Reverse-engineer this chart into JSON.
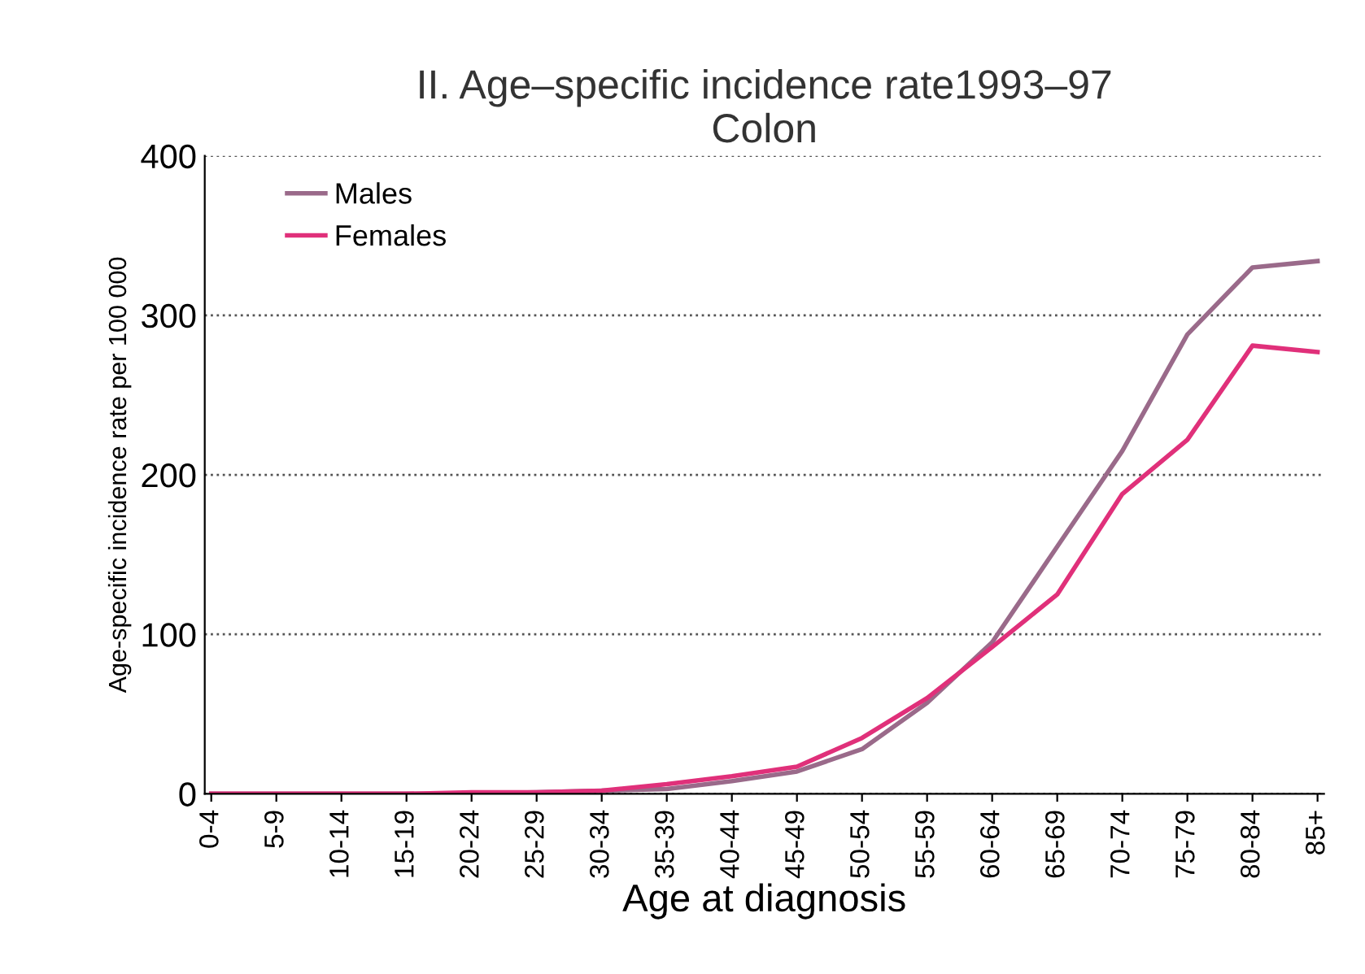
{
  "chart_data": {
    "type": "line",
    "title": "II. Age–specific incidence rate1993–97\nColon",
    "xlabel": "Age at diagnosis",
    "ylabel": "Age-specific incidence rate per 100 000",
    "categories": [
      "0-4",
      "5-9",
      "10-14",
      "15-19",
      "20-24",
      "25-29",
      "30-34",
      "35-39",
      "40-44",
      "45-49",
      "50-54",
      "55-59",
      "60-64",
      "65-69",
      "70-74",
      "75-79",
      "80-84",
      "85+"
    ],
    "series": [
      {
        "name": "Males",
        "color": "#9a6a8a",
        "values": [
          0,
          0,
          0,
          0,
          0,
          1,
          2,
          3,
          8,
          14,
          28,
          57,
          95,
          155,
          215,
          288,
          330,
          334
        ]
      },
      {
        "name": "Females",
        "color": "#e0307a",
        "values": [
          0,
          0,
          0,
          0,
          1,
          1,
          2,
          6,
          11,
          17,
          35,
          60,
          92,
          125,
          188,
          222,
          281,
          277
        ]
      }
    ],
    "ylim": [
      0,
      400
    ],
    "yticks": [
      0,
      100,
      200,
      300,
      400
    ],
    "grid": "y",
    "legend": "top left",
    "marker": "none",
    "line_style": "solid"
  }
}
